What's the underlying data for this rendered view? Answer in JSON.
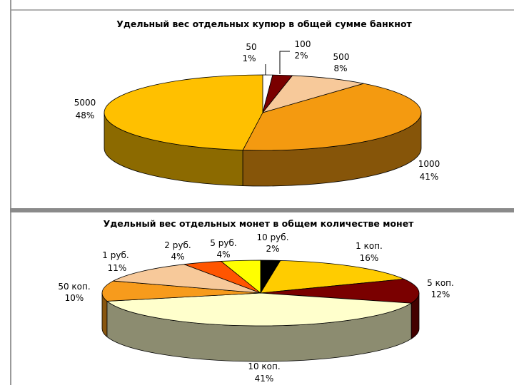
{
  "chart_data": [
    {
      "type": "pie",
      "title": "Удельный вес отдельных купюр в общей сумме банкнот",
      "slices": [
        {
          "label": "50",
          "percent_text": "1%",
          "value": 1,
          "color": "#ffffff"
        },
        {
          "label": "100",
          "percent_text": "2%",
          "value": 2,
          "color": "#7a0000"
        },
        {
          "label": "500",
          "percent_text": "8%",
          "value": 8,
          "color": "#f7c99a"
        },
        {
          "label": "1000",
          "percent_text": "41%",
          "value": 41,
          "color": "#f49a10"
        },
        {
          "label": "5000",
          "percent_text": "48%",
          "value": 48,
          "color": "#ffc000"
        }
      ]
    },
    {
      "type": "pie",
      "title": "Удельный вес отдельных монет в общем количестве монет",
      "slices": [
        {
          "label": "10 руб.",
          "percent_text": "2%",
          "value": 2,
          "color": "#000000"
        },
        {
          "label": "1 коп.",
          "percent_text": "16%",
          "value": 16,
          "color": "#ffcc00"
        },
        {
          "label": "5 коп.",
          "percent_text": "12%",
          "value": 12,
          "color": "#7a0000"
        },
        {
          "label": "10 коп.",
          "percent_text": "41%",
          "value": 41,
          "color": "#ffffcc"
        },
        {
          "label": "50 коп.",
          "percent_text": "10%",
          "value": 10,
          "color": "#f79b1c"
        },
        {
          "label": "1 руб.",
          "percent_text": "11%",
          "value": 11,
          "color": "#f7c99a"
        },
        {
          "label": "2 руб.",
          "percent_text": "4%",
          "value": 4,
          "color": "#ff5500"
        },
        {
          "label": "5 руб.",
          "percent_text": "4%",
          "value": 4,
          "color": "#ffff00"
        }
      ]
    }
  ]
}
